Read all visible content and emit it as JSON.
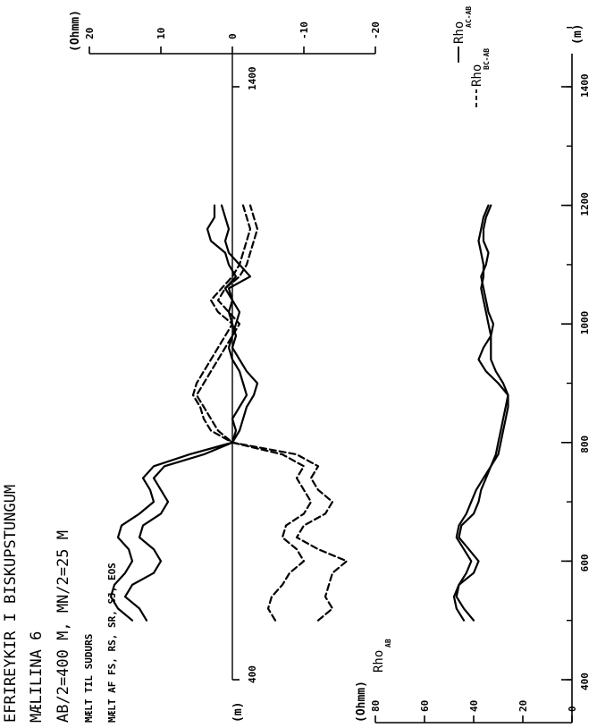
{
  "header": {
    "title": "EFRIREYKIR I BISKUPSTUNGUM",
    "line1": "MÆLILINA 6",
    "line2": "AB/2=400 M,  MN/2=25 M",
    "line3": "MÆLT TIL SUDURS",
    "line4": "MÆLT AF FS, RS, SR, SJ, EOS"
  },
  "chart_data": [
    {
      "type": "line",
      "title": "",
      "xlabel": "(m)",
      "ylabel": "(Ohmm)",
      "xlim": [
        400,
        1500
      ],
      "ylim": [
        -20,
        20
      ],
      "x_ticks": [
        400,
        1400
      ],
      "x_tick_labels": [
        "400",
        "1400"
      ],
      "y_ticks": [
        20,
        10,
        0,
        -10,
        -20
      ],
      "y_tick_labels": [
        "20",
        "10",
        "0",
        "-10",
        "-20"
      ],
      "legend": {
        "position": "top-right",
        "entries": [
          {
            "main": "Rho",
            "sub": "AC-AB",
            "style": "solid"
          },
          {
            "main": "Rho",
            "sub": "BC-AB",
            "style": "dashed"
          }
        ]
      },
      "series": [
        {
          "style": "solid",
          "x": [
            500,
            520,
            540,
            560,
            580,
            600,
            620,
            640,
            660,
            680,
            700,
            720,
            740,
            760,
            780,
            800,
            820,
            840,
            860,
            880,
            900,
            920,
            940,
            960,
            980,
            1000,
            1020,
            1040,
            1060,
            1080,
            1100,
            1120,
            1140,
            1160,
            1180,
            1200
          ],
          "y": [
            14,
            16,
            17,
            16.5,
            15,
            14,
            14.5,
            16,
            15.5,
            13,
            11,
            11.5,
            12.5,
            11,
            6,
            0,
            -1,
            -1.5,
            -2,
            -3,
            -3.5,
            -2,
            -1,
            0,
            -0.5,
            0,
            0.5,
            0,
            1,
            -0.5,
            0.5,
            1,
            3,
            3.5,
            2.5,
            2.5
          ]
        },
        {
          "style": "solid",
          "x": [
            500,
            520,
            540,
            560,
            580,
            600,
            620,
            640,
            660,
            680,
            700,
            720,
            740,
            760,
            780,
            800,
            820,
            840,
            860,
            880,
            900,
            920,
            940,
            960,
            980,
            1000,
            1020,
            1040,
            1060,
            1080,
            1100,
            1120,
            1140,
            1160,
            1180,
            1200
          ],
          "y": [
            12,
            13,
            15,
            14,
            11,
            10,
            11,
            13,
            12.5,
            10,
            9,
            10,
            11,
            9.5,
            4,
            0,
            -0.5,
            0,
            -1,
            -2,
            -1.5,
            -1,
            0,
            0.5,
            0,
            -0.5,
            -1,
            0,
            0.5,
            -2.5,
            -1,
            0.5,
            1,
            0.5,
            1,
            1.5
          ]
        },
        {
          "style": "dashed",
          "x": [
            500,
            520,
            540,
            560,
            580,
            600,
            620,
            640,
            660,
            680,
            700,
            720,
            740,
            760,
            780,
            800,
            820,
            840,
            860,
            880,
            900,
            920,
            940,
            960,
            980,
            1000,
            1020,
            1040,
            1060,
            1080,
            1100,
            1120,
            1140,
            1160,
            1180,
            1200
          ],
          "y": [
            -6,
            -5,
            -5.5,
            -7,
            -8,
            -10,
            -9,
            -7,
            -7.5,
            -10,
            -11,
            -10,
            -9,
            -10,
            -7,
            0,
            2,
            3,
            4,
            5,
            4,
            3,
            2,
            1,
            0,
            -1,
            0.5,
            2,
            1,
            -1,
            -2,
            -2.5,
            -3,
            -3.5,
            -3,
            -2.5
          ]
        },
        {
          "style": "dashed",
          "x": [
            500,
            520,
            540,
            560,
            580,
            600,
            620,
            640,
            660,
            680,
            700,
            720,
            740,
            760,
            780,
            800,
            820,
            840,
            860,
            880,
            900,
            920,
            940,
            960,
            980,
            1000,
            1020,
            1040,
            1060,
            1080,
            1100,
            1120,
            1140,
            1160,
            1180,
            1200
          ],
          "y": [
            -12,
            -14,
            -13,
            -13.5,
            -14,
            -16,
            -12,
            -9,
            -10,
            -13,
            -14,
            -12,
            -11,
            -12,
            -9,
            0,
            3,
            4,
            4.5,
            5.5,
            5,
            4,
            3,
            2,
            1,
            0,
            2,
            3,
            1.5,
            0,
            -1,
            -1.5,
            -2,
            -2.5,
            -2,
            -1.5
          ]
        }
      ]
    },
    {
      "type": "line",
      "title": "",
      "series_label": {
        "main": "Rho",
        "sub": "AB"
      },
      "xlabel": "(m)",
      "ylabel": "(Ohmm)",
      "xlim": [
        400,
        1500
      ],
      "ylim": [
        0,
        80
      ],
      "x_ticks": [
        400,
        600,
        800,
        1000,
        1200,
        1400
      ],
      "x_tick_labels": [
        "400",
        "600",
        "800",
        "1000",
        "1200",
        "1400"
      ],
      "y_ticks": [
        80,
        60,
        40,
        20,
        0
      ],
      "y_tick_labels": [
        "80",
        "60",
        "40",
        "20",
        "0"
      ],
      "series": [
        {
          "style": "solid",
          "x": [
            500,
            520,
            540,
            560,
            580,
            600,
            620,
            640,
            660,
            680,
            700,
            720,
            740,
            760,
            780,
            800,
            820,
            840,
            860,
            880,
            900,
            920,
            940,
            960,
            980,
            1000,
            1020,
            1040,
            1060,
            1080,
            1100,
            1120,
            1140,
            1160,
            1180,
            1200
          ],
          "y": [
            40,
            44,
            47,
            46,
            43,
            41,
            44,
            47,
            46,
            43,
            41,
            39,
            36,
            33,
            31,
            30,
            29,
            28,
            27,
            26,
            28,
            31,
            33,
            33,
            33,
            34,
            35,
            36,
            37,
            36,
            36,
            37,
            38,
            37,
            36,
            34
          ]
        },
        {
          "style": "solid",
          "x": [
            500,
            520,
            540,
            560,
            580,
            600,
            620,
            640,
            660,
            680,
            700,
            720,
            740,
            760,
            780,
            800,
            820,
            840,
            860,
            880,
            900,
            920,
            940,
            960,
            980,
            1000,
            1020,
            1040,
            1060,
            1080,
            1100,
            1120,
            1140,
            1160,
            1180,
            1200
          ],
          "y": [
            44,
            47,
            48,
            46,
            40,
            38,
            42,
            46,
            45,
            40,
            38,
            37,
            35,
            33,
            30,
            29,
            28,
            27,
            26,
            26,
            30,
            35,
            38,
            36,
            33,
            32,
            34,
            35,
            36,
            37,
            35,
            34,
            36,
            36,
            35,
            33
          ]
        }
      ]
    }
  ]
}
